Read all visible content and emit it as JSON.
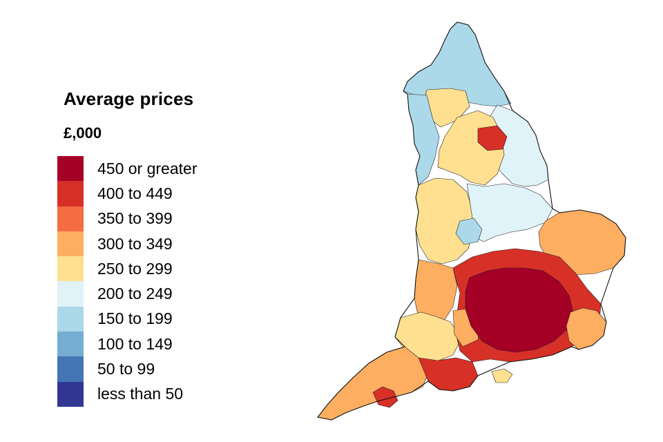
{
  "legend": {
    "title": "Average prices",
    "subtitle": "£,000",
    "items": [
      {
        "label": "450 or greater",
        "color": "#a50026"
      },
      {
        "label": "400 to 449",
        "color": "#d73027"
      },
      {
        "label": "350 to 399",
        "color": "#f46d43"
      },
      {
        "label": "300 to 349",
        "color": "#fdae61"
      },
      {
        "label": "250 to 299",
        "color": "#fee090"
      },
      {
        "label": "200 to 249",
        "color": "#e0f3f8"
      },
      {
        "label": "150 to 199",
        "color": "#abd9e9"
      },
      {
        "label": "100 to 149",
        "color": "#74add1"
      },
      {
        "label": "50 to 99",
        "color": "#4575b4"
      },
      {
        "label": "less than 50",
        "color": "#313695"
      }
    ]
  },
  "map": {
    "country": "England",
    "region_bands": {
      "north": "150 to 199",
      "yorkshire_coast": "200 to 249",
      "cumbria_dales": "250 to 299",
      "midlands_west": "250 to 299",
      "midlands_east": "200 to 249",
      "east_anglia": "300 to 349",
      "south_west": "300 to 349",
      "home_counties_outer": "400 to 449",
      "london_and_surrounds": "450 or greater",
      "cornwall": "300 to 349"
    }
  }
}
